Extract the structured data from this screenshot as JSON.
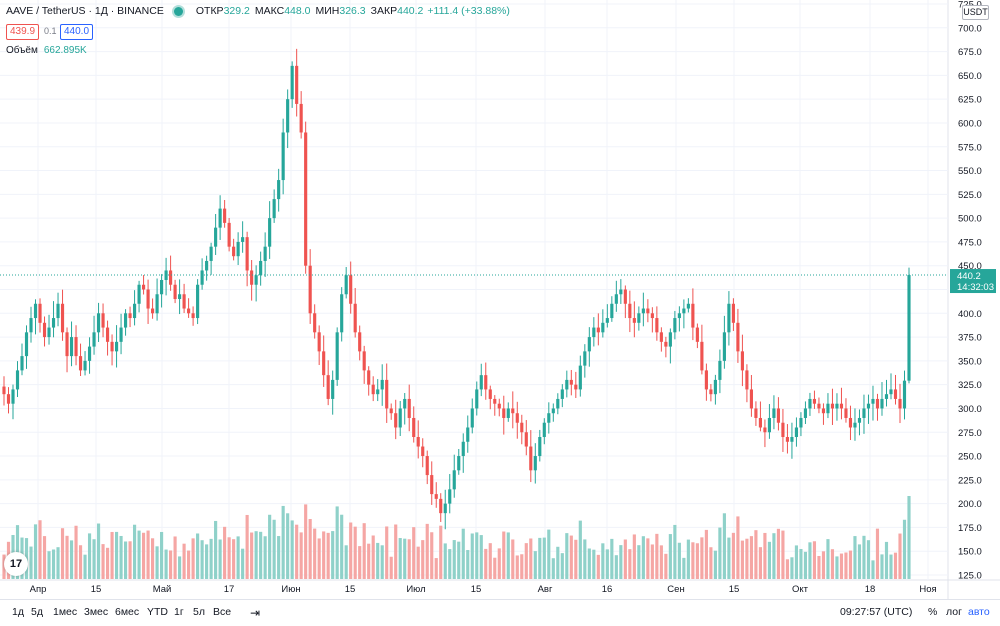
{
  "legend": {
    "symbol": "AAVE / TetherUS · 1Д · BINANCE",
    "open_label": "ОТКР",
    "open": "329.2",
    "high_label": "МАКС",
    "high": "448.0",
    "low_label": "МИН",
    "low": "326.3",
    "close_label": "ЗАКР",
    "close": "440.2",
    "change": "+111.4 (+33.88%)"
  },
  "order": {
    "sell": "439.9",
    "spread": "0.1",
    "buy": "440.0"
  },
  "volume": {
    "label": "Объём",
    "value": "662.895K"
  },
  "currency": "USDT",
  "last_price": {
    "price": "440.2",
    "countdown": "14:32:03"
  },
  "y_axis_labels": [
    "725.0",
    "700.0",
    "675.0",
    "650.0",
    "625.0",
    "600.0",
    "575.0",
    "550.0",
    "525.0",
    "500.0",
    "475.0",
    "450.0",
    "425.0",
    "400.0",
    "375.0",
    "350.0",
    "325.0",
    "300.0",
    "275.0",
    "250.0",
    "225.0",
    "200.0",
    "175.0",
    "150.0",
    "125.0"
  ],
  "x_axis_labels": [
    "Апр",
    "15",
    "Май",
    "17",
    "Июн",
    "15",
    "Июл",
    "15",
    "Авг",
    "16",
    "Сен",
    "15",
    "Окт",
    "18",
    "Ноя"
  ],
  "timeframes": [
    "1д",
    "5д",
    "1мес",
    "3мес",
    "6мес",
    "YTD",
    "1г",
    "5л",
    "Все"
  ],
  "clock": "09:27:57 (UTC)",
  "toggles": {
    "percent": "%",
    "log": "лог",
    "auto": "авто"
  },
  "colors": {
    "up": "#26a69a",
    "down": "#ef5350",
    "vol_up": "#8fd1c9",
    "vol_down": "#f5a6a4"
  },
  "chart_data": {
    "type": "candlestick",
    "ylim": [
      125,
      725
    ],
    "closes": [
      315,
      305,
      320,
      340,
      355,
      380,
      395,
      410,
      390,
      375,
      385,
      395,
      410,
      380,
      355,
      375,
      355,
      340,
      350,
      365,
      380,
      400,
      385,
      370,
      360,
      370,
      385,
      400,
      395,
      410,
      430,
      425,
      405,
      400,
      420,
      435,
      445,
      430,
      415,
      420,
      405,
      400,
      395,
      430,
      445,
      455,
      470,
      490,
      510,
      495,
      470,
      460,
      475,
      480,
      445,
      430,
      440,
      455,
      470,
      500,
      520,
      540,
      590,
      625,
      660,
      620,
      590,
      450,
      400,
      380,
      360,
      335,
      310,
      330,
      380,
      420,
      440,
      410,
      380,
      360,
      340,
      325,
      315,
      320,
      330,
      300,
      295,
      280,
      300,
      310,
      290,
      270,
      260,
      250,
      230,
      210,
      205,
      190,
      200,
      215,
      235,
      250,
      265,
      280,
      300,
      320,
      335,
      320,
      310,
      305,
      300,
      290,
      300,
      295,
      285,
      275,
      260,
      235,
      250,
      270,
      285,
      295,
      300,
      310,
      320,
      330,
      325,
      320,
      345,
      360,
      375,
      385,
      380,
      390,
      395,
      410,
      420,
      425,
      410,
      395,
      390,
      400,
      405,
      400,
      395,
      380,
      370,
      365,
      380,
      395,
      400,
      405,
      410,
      385,
      370,
      340,
      320,
      315,
      330,
      350,
      380,
      410,
      390,
      360,
      340,
      320,
      300,
      290,
      280,
      275,
      290,
      300,
      285,
      270,
      265,
      270,
      280,
      290,
      300,
      310,
      305,
      300,
      295,
      305,
      300,
      305,
      300,
      290,
      280,
      285,
      290,
      300,
      305,
      310,
      300,
      310,
      315,
      320,
      310,
      300,
      329.2,
      440.2
    ],
    "price_highs": [
      "448.0"
    ],
    "price_lows": [
      "326.3"
    ],
    "volume_note": "662.895K"
  }
}
